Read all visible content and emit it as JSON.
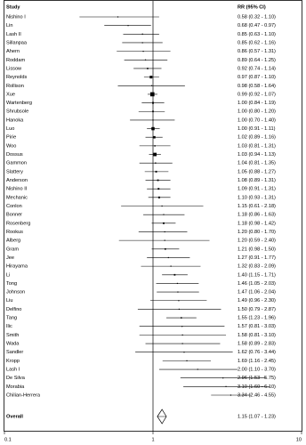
{
  "chart_data": {
    "type": "forest",
    "columns": [
      "Study",
      "RR (95% CI)"
    ],
    "categories": [
      "Nishino I",
      "Lin",
      "Lash II",
      "Sillanpaa",
      "Ahern",
      "Roddam",
      "Lissow",
      "Reynolds",
      "Rollison",
      "Xue",
      "Wartenberg",
      "Shrubsole",
      "Hanoka",
      "Luo",
      "Pirie",
      "Woo",
      "Dossus",
      "Gammon",
      "Slattery",
      "Anderson",
      "Nishino II",
      "Mechanic",
      "Conlon",
      "Bonner",
      "Rosenberg",
      "Rookus",
      "Alberg",
      "Gram",
      "Jee",
      "Hirayama",
      "Li",
      "Tong",
      "Johnson",
      "Liu",
      "Delfino",
      "Tang",
      "Ilic",
      "Smith",
      "Wada",
      "Sandler",
      "Kropp",
      "Lash I",
      "De Silva",
      "Morabia",
      "Chilian-Herrera"
    ],
    "values": [
      0.58,
      0.68,
      0.85,
      0.85,
      0.86,
      0.89,
      0.92,
      0.97,
      0.98,
      0.99,
      1.0,
      1.0,
      1.0,
      1.0,
      1.02,
      1.03,
      1.03,
      1.04,
      1.05,
      1.08,
      1.09,
      1.1,
      1.15,
      1.18,
      1.18,
      1.2,
      1.2,
      1.21,
      1.27,
      1.32,
      1.4,
      1.46,
      1.47,
      1.49,
      1.5,
      1.55,
      1.57,
      1.58,
      1.58,
      1.62,
      1.69,
      2.0,
      2.96,
      3.1,
      3.34
    ],
    "lower": [
      0.32,
      0.47,
      0.63,
      0.62,
      0.57,
      0.64,
      0.74,
      0.87,
      0.58,
      0.92,
      0.84,
      0.8,
      0.7,
      0.91,
      0.89,
      0.81,
      0.94,
      0.81,
      0.88,
      0.89,
      0.91,
      0.93,
      0.61,
      0.86,
      0.98,
      0.8,
      0.59,
      0.98,
      0.91,
      0.83,
      1.15,
      1.05,
      1.06,
      0.96,
      0.79,
      1.23,
      0.81,
      0.81,
      0.89,
      0.76,
      1.16,
      1.1,
      1.53,
      1.6,
      2.46
    ],
    "upper": [
      1.1,
      0.97,
      1.1,
      1.16,
      1.31,
      1.25,
      1.14,
      1.1,
      1.64,
      1.07,
      1.19,
      1.2,
      1.4,
      1.11,
      1.16,
      1.31,
      1.13,
      1.35,
      1.27,
      1.31,
      1.31,
      1.31,
      2.18,
      1.63,
      1.42,
      1.7,
      2.4,
      1.5,
      1.77,
      2.09,
      1.71,
      2.03,
      2.04,
      2.3,
      2.87,
      1.96,
      3.03,
      3.1,
      2.83,
      3.44,
      2.45,
      3.7,
      5.75,
      6.1,
      4.55
    ],
    "value_labels": [
      "0.58 (0.32 - 1.10)",
      "0.68 (0.47 - 0.97)",
      "0.85 (0.63 - 1.10)",
      "0.85 (0.62 - 1.16)",
      "0.86 (0.57 - 1.31)",
      "0.89 (0.64 - 1.25)",
      "0.92 (0.74 - 1.14)",
      "0.97 (0.87 - 1.10)",
      "0.98 (0.58 - 1.64)",
      "0.99 (0.92 - 1.07)",
      "1.00 (0.84 - 1.19)",
      "1.00 (0.80 - 1.20)",
      "1.00 (0.70 - 1.40)",
      "1.00 (0.91 - 1.11)",
      "1.02 (0.89 - 1.16)",
      "1.03 (0.81 - 1.31)",
      "1.03 (0.94 - 1.13)",
      "1.04 (0.81 - 1.35)",
      "1.05 (0.88 - 1.27)",
      "1.08 (0.89 - 1.31)",
      "1.09 (0.91 - 1.31)",
      "1.10 (0.93 - 1.31)",
      "1.15 (0.61 - 2.18)",
      "1.18 (0.86 - 1.63)",
      "1.18 (0.98 - 1.42)",
      "1.20 (0.80 - 1.70)",
      "1.20 (0.59 - 2.40)",
      "1.21 (0.98 - 1.50)",
      "1.27 (0.91 - 1.77)",
      "1.32 (0.83 - 2.09)",
      "1.40 (1.15 - 1.71)",
      "1.46 (1.05 - 2.03)",
      "1.47 (1.06 - 2.04)",
      "1.49 (0.96 - 2.30)",
      "1.50 (0.79 - 2.87)",
      "1.55 (1.23 - 1.96)",
      "1.57 (0.81 - 3.03)",
      "1.58 (0.81 - 3.10)",
      "1.58 (0.89 - 2.83)",
      "1.62 (0.76 - 3.44)",
      "1.69 (1.16 - 2.45)",
      "2.00 (1.10 - 3.70)",
      "2.96 (1.53 - 5.75)",
      "3.10 (1.60 - 6.10)",
      "3.34 (2.46 - 4.55)"
    ],
    "overall": {
      "name": "Overall",
      "value": 1.15,
      "lower": 1.07,
      "upper": 1.23,
      "value_label": "1.15 (1.07 - 1.23)"
    },
    "xlim": [
      0.1,
      10
    ],
    "xticks": [
      0.1,
      1,
      10
    ],
    "log_x": true,
    "color": "#000000"
  }
}
